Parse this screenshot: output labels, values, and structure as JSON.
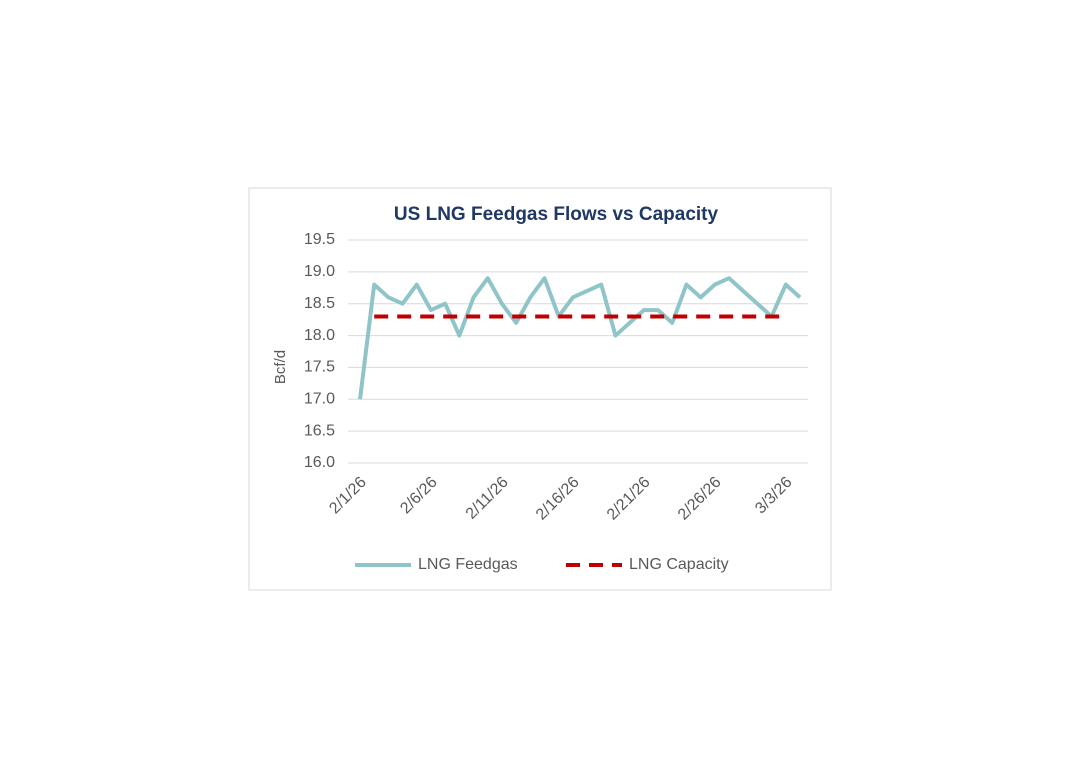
{
  "chart_data": {
    "type": "line",
    "title": "US LNG Feedgas Flows vs Capacity",
    "y_label": "Bcf/d",
    "categories": [
      "2/1/26",
      null,
      null,
      null,
      null,
      "2/6/26",
      null,
      null,
      null,
      null,
      "2/11/26",
      null,
      null,
      null,
      null,
      "2/16/26",
      null,
      null,
      null,
      null,
      "2/21/26",
      null,
      null,
      null,
      null,
      "2/26/26",
      null,
      null,
      null,
      null,
      "3/3/26",
      null
    ],
    "series": [
      {
        "name": "LNG Feedgas",
        "color": "#8fc5c8",
        "dashed": false,
        "values": [
          17.0,
          18.8,
          18.6,
          18.5,
          18.8,
          18.4,
          18.5,
          18.0,
          18.6,
          18.9,
          18.5,
          18.2,
          18.6,
          18.9,
          18.3,
          18.6,
          18.7,
          18.8,
          18.0,
          18.2,
          18.4,
          18.4,
          18.2,
          18.8,
          18.6,
          18.8,
          18.9,
          18.7,
          18.5,
          18.3,
          18.8,
          18.6
        ]
      },
      {
        "name": "LNG Capacity",
        "color": "#c00000",
        "dashed": true,
        "values": [
          null,
          18.3,
          18.3,
          18.3,
          18.3,
          18.3,
          18.3,
          18.3,
          18.3,
          18.3,
          18.3,
          18.3,
          18.3,
          18.3,
          18.3,
          18.3,
          18.3,
          18.3,
          18.3,
          18.3,
          18.3,
          18.3,
          18.3,
          18.3,
          18.3,
          18.3,
          18.3,
          18.3,
          18.3,
          18.3,
          18.3,
          null
        ]
      }
    ],
    "ylim": [
      16,
      19.5
    ],
    "yticks": [
      {
        "value": 16,
        "label": "16.0"
      },
      16.5,
      {
        "value": 17,
        "label": "17.0"
      },
      17.5,
      {
        "value": 18,
        "label": "18.0"
      },
      18.5,
      {
        "value": 19,
        "label": "19.0"
      },
      19.5
    ],
    "grid": true,
    "legend": "bottom"
  }
}
